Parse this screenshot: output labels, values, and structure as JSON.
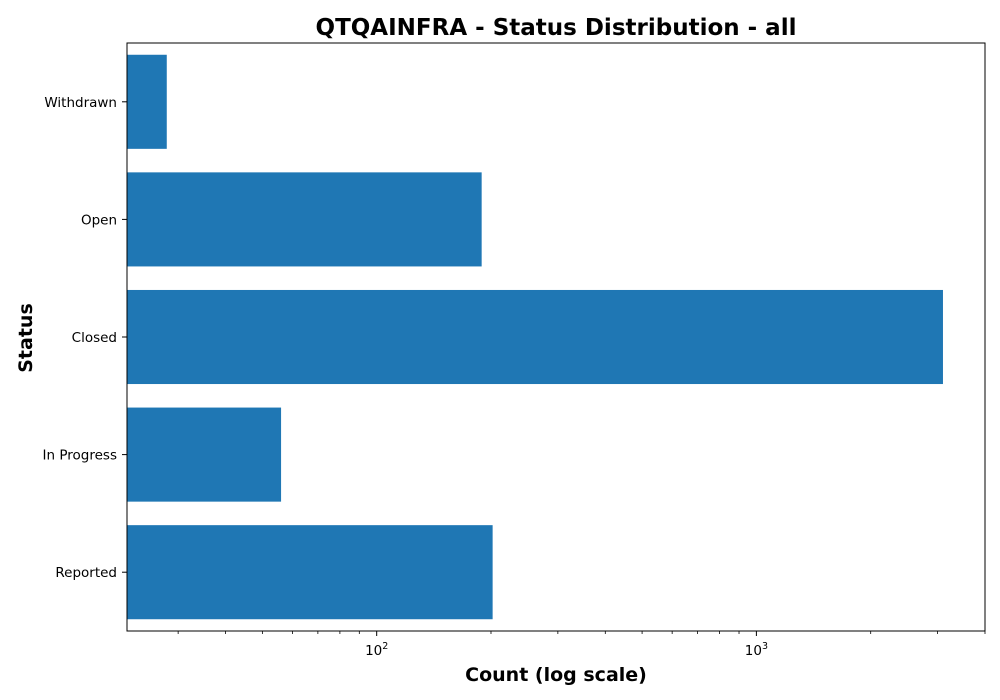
{
  "chart_data": {
    "type": "bar",
    "orientation": "horizontal",
    "title": "QTQAINFRA - Status Distribution - all",
    "xlabel": "Count (log scale)",
    "ylabel": "Status",
    "x_scale": "log",
    "xlim": [
      22,
      4000
    ],
    "x_ticks": [
      {
        "value": 100,
        "base": "10",
        "exp": "2"
      },
      {
        "value": 1000,
        "base": "10",
        "exp": "3"
      }
    ],
    "categories": [
      "Reported",
      "In Progress",
      "Closed",
      "Open",
      "Withdrawn"
    ],
    "values": [
      202,
      56,
      3100,
      189,
      28
    ],
    "bar_color": "#1f77b4",
    "grid": false,
    "legend": "none"
  }
}
